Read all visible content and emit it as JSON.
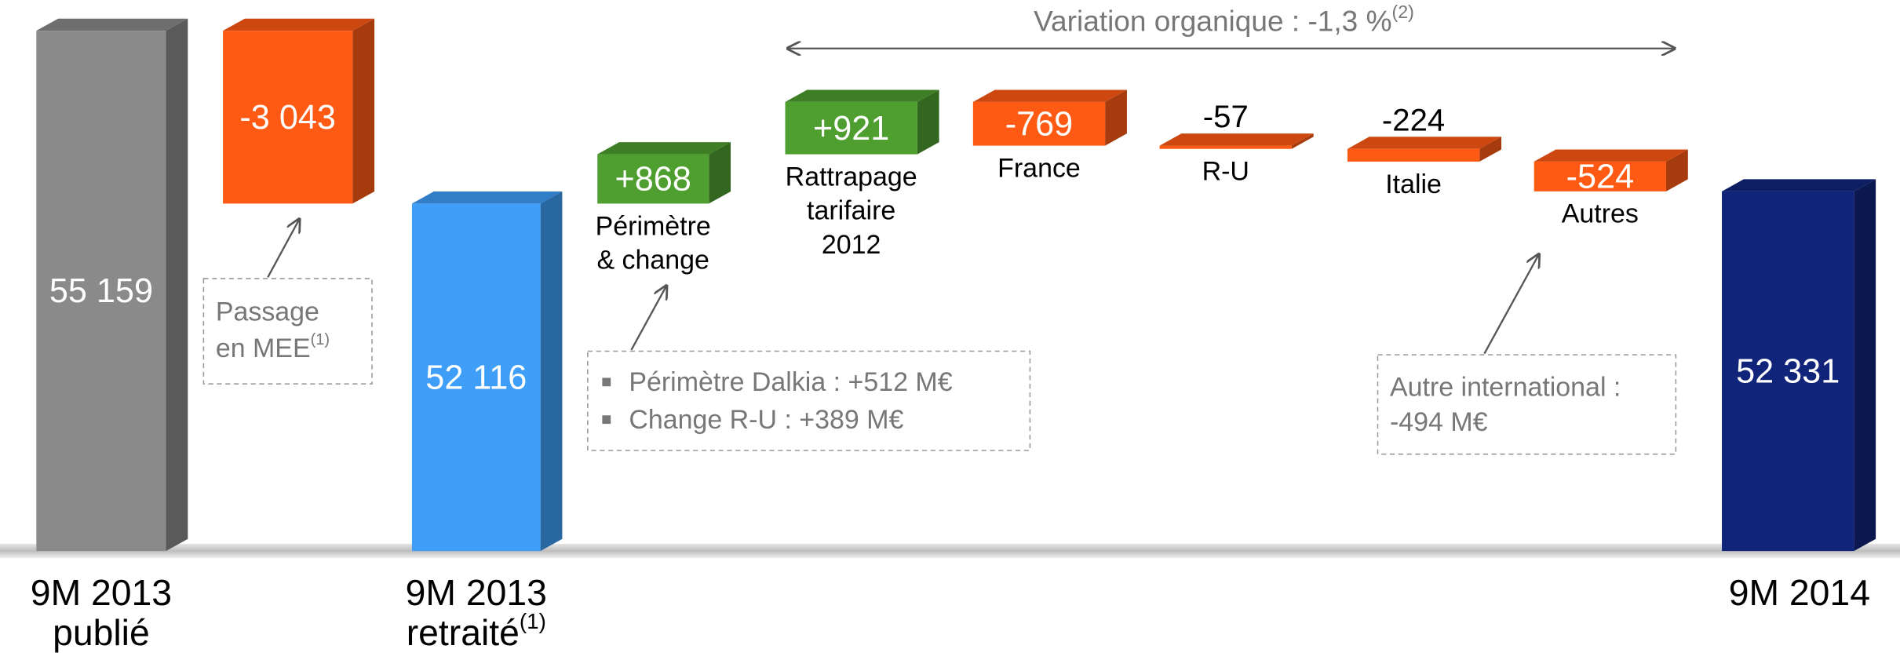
{
  "chart_data": {
    "type": "waterfall",
    "categories": [
      [
        "9M 2013",
        "publié"
      ],
      [
        "Passage",
        "en MEE"
      ],
      [
        "9M 2013",
        "retraité"
      ],
      [
        "Périmètre",
        "& change"
      ],
      [
        "Rattrapage",
        "tarifaire",
        "2012"
      ],
      [
        "France"
      ],
      [
        "R-U"
      ],
      [
        "Italie"
      ],
      [
        "Autres"
      ],
      [
        "9M 2014"
      ]
    ],
    "category_notes": [
      null,
      "(1)",
      "(1)",
      null,
      null,
      null,
      null,
      null,
      null,
      null
    ],
    "values": [
      55159,
      -3043,
      52116,
      868,
      921,
      -769,
      -57,
      -224,
      -524,
      52331
    ],
    "value_labels": [
      "55 159",
      "-3 043",
      "52 116",
      "+868",
      "+921",
      "-769",
      "-57",
      "-224",
      "-524",
      "52 331"
    ],
    "is_total": [
      true,
      false,
      true,
      false,
      false,
      false,
      false,
      false,
      false,
      true
    ],
    "colors": [
      "#8a8a8a",
      "#ff5a14",
      "#3f9ef8",
      "#4e9f2f",
      "#4e9f2f",
      "#ff5a14",
      "#ff5a14",
      "#ff5a14",
      "#ff5a14",
      "#10257a"
    ],
    "ylim": [
      46000,
      55700
    ],
    "annotations": {
      "variation": "Variation organique : -1,3 %",
      "variation_note": "(2)",
      "perimetre": [
        "Périmètre Dalkia : +512 M€",
        "Change R-U : +389 M€"
      ],
      "international": [
        "Autre international :",
        "-494 M€"
      ]
    }
  }
}
